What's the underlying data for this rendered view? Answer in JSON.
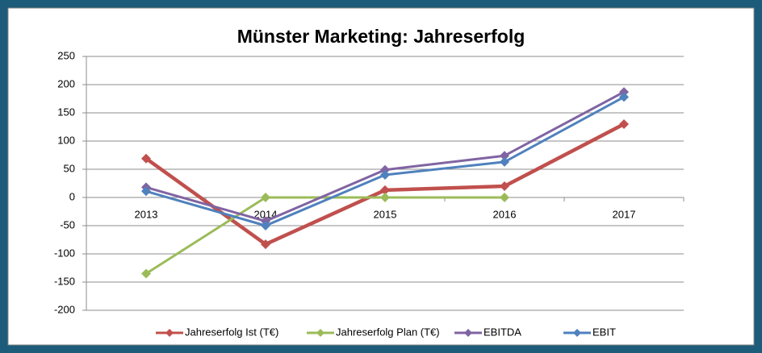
{
  "chart_data": {
    "type": "line",
    "title": "Münster Marketing: Jahreserfolg",
    "categories": [
      "2013",
      "2014",
      "2015",
      "2016",
      "2017"
    ],
    "series": [
      {
        "name": "Jahreserfolg Ist (T€)",
        "color": "#c0504d",
        "values": [
          69,
          -83,
          13,
          20,
          130
        ]
      },
      {
        "name": "Jahreserfolg Plan (T€)",
        "color": "#9bbb59",
        "values": [
          -135,
          0,
          0,
          0,
          null
        ]
      },
      {
        "name": "EBITDA",
        "color": "#8064a2",
        "values": [
          18,
          -42,
          49,
          74,
          187
        ]
      },
      {
        "name": "EBIT",
        "color": "#4f81bd",
        "values": [
          11,
          -50,
          40,
          63,
          178
        ]
      }
    ],
    "ylim": [
      -200,
      250
    ],
    "yticks": [
      -200,
      -150,
      -100,
      -50,
      0,
      50,
      100,
      150,
      200,
      250
    ],
    "grid": true,
    "legend": "bottom"
  }
}
